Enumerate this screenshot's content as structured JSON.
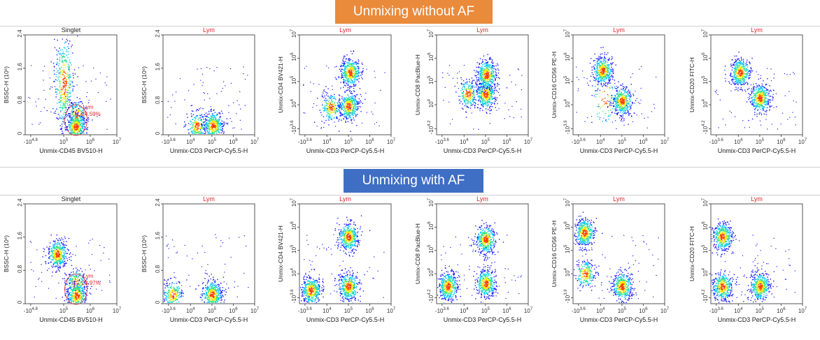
{
  "banners": {
    "top": "Unmixing without AF",
    "bottom": "Unmixing with AF"
  },
  "colors": {
    "banner_top": "#ea8a3b",
    "banner_bottom": "#3f6fc4",
    "title_red": "#e0262b",
    "gate_red": "#e0262b",
    "density_scale": [
      "#1a1aff",
      "#00c8ff",
      "#33e08a",
      "#ffe600",
      "#ff3b00"
    ]
  },
  "chart_data": [
    {
      "type": "scatter",
      "row": "without AF",
      "title": "Singlet",
      "title_color": "#222222",
      "xlabel": "Unmix-CD45 BV510-H",
      "ylabel": "BSSC-H (10⁶)",
      "xticks": [
        "-10^4.8",
        "10^5",
        "10^6",
        "10^7"
      ],
      "yticks": [
        "0",
        "0.8",
        "1.6",
        "2.4"
      ],
      "gate": {
        "name": "Lym",
        "percent": "24.59%"
      },
      "populations": [
        {
          "x": 100000,
          "y": 1.25,
          "density": "high"
        },
        {
          "x": 300000,
          "y": 0.5,
          "density": "medium"
        },
        {
          "x": 280000,
          "y": 0.2,
          "density": "high"
        }
      ]
    },
    {
      "type": "scatter",
      "row": "without AF",
      "title": "Lym",
      "title_color": "#e0262b",
      "xlabel": "Unmix-CD3 PerCP-Cy5.5-H",
      "ylabel": "BSSC-H (10⁶)",
      "xticks": [
        "-10^3.6",
        "10^4",
        "10^5",
        "10^6",
        "10^7"
      ],
      "yticks": [
        "0",
        "0.8",
        "1.6",
        "2.4"
      ],
      "populations": [
        {
          "x": 20000,
          "y": 0.22,
          "density": "medium"
        },
        {
          "x": 110000,
          "y": 0.22,
          "density": "high"
        }
      ]
    },
    {
      "type": "scatter",
      "row": "without AF",
      "title": "Lym",
      "title_color": "#e0262b",
      "xlabel": "Unmix-CD3 PerCP-Cy5.5-H",
      "ylabel": "Unmix-CD4 BV421-H",
      "xticks": [
        "-10^3.6",
        "10^4",
        "10^5",
        "10^6",
        "10^7"
      ],
      "yticks": [
        "-10^3.6",
        "10^4",
        "10^5",
        "10^6",
        "10^7"
      ],
      "populations": [
        {
          "x": 15000,
          "y": 8000,
          "density": "medium"
        },
        {
          "x": 100000,
          "y": 9000,
          "density": "high"
        },
        {
          "x": 120000,
          "y": 250000,
          "density": "high"
        }
      ]
    },
    {
      "type": "scatter",
      "row": "without AF",
      "title": "Lym",
      "title_color": "#e0262b",
      "xlabel": "Unmix-CD3 PerCP-Cy5.5-H",
      "ylabel": "Unmix-CD8 PacBlue-H",
      "xticks": [
        "-10^3.6",
        "10^4",
        "10^5",
        "10^6",
        "10^7"
      ],
      "yticks": [
        "-10^4.2",
        "10^4",
        "10^5",
        "10^6",
        "10^7"
      ],
      "populations": [
        {
          "x": 15000,
          "y": 30000,
          "density": "medium"
        },
        {
          "x": 100000,
          "y": 30000,
          "density": "high"
        },
        {
          "x": 110000,
          "y": 200000,
          "density": "high"
        }
      ]
    },
    {
      "type": "scatter",
      "row": "without AF",
      "title": "Lym",
      "title_color": "#e0262b",
      "xlabel": "Unmix-CD3 PerCP-Cy5.5-H",
      "ylabel": "Unmix-CD16 CD56 PE-H",
      "xticks": [
        "-10^3.6",
        "10^4",
        "10^5",
        "10^6",
        "10^7"
      ],
      "yticks": [
        "-10^3.9",
        "10^4",
        "10^5",
        "10^6",
        "10^7"
      ],
      "populations": [
        {
          "x": 15000,
          "y": 20000,
          "density": "low"
        },
        {
          "x": 12000,
          "y": 300000,
          "density": "high"
        },
        {
          "x": 100000,
          "y": 15000,
          "density": "high"
        }
      ]
    },
    {
      "type": "scatter",
      "row": "without AF",
      "title": "Lym",
      "title_color": "#e0262b",
      "xlabel": "Unmix-CD3 PerCP-Cy5.5-H",
      "ylabel": "Unmix-CD20 FITC-H",
      "xticks": [
        "-10^3.6",
        "10^4",
        "10^5",
        "10^6",
        "10^7"
      ],
      "yticks": [
        "-10^4.2",
        "10^4",
        "10^5",
        "10^6",
        "10^7"
      ],
      "populations": [
        {
          "x": 12000,
          "y": 250000,
          "density": "high"
        },
        {
          "x": 100000,
          "y": 20000,
          "density": "high"
        }
      ]
    },
    {
      "type": "scatter",
      "row": "with AF",
      "title": "Singlet",
      "title_color": "#222222",
      "xlabel": "Unmix-CD45 BV510-H",
      "ylabel": "BSSC-H (10⁶)",
      "xticks": [
        "-10^4.8",
        "10^5",
        "10^6",
        "10^7"
      ],
      "yticks": [
        "0",
        "0.8",
        "1.6",
        "2.4"
      ],
      "gate": {
        "name": "Lym",
        "percent": "23.97%"
      },
      "populations": [
        {
          "x": 40000,
          "y": 1.2,
          "density": "high"
        },
        {
          "x": 280000,
          "y": 0.5,
          "density": "medium"
        },
        {
          "x": 300000,
          "y": 0.2,
          "density": "high"
        }
      ]
    },
    {
      "type": "scatter",
      "row": "with AF",
      "title": "Lym",
      "title_color": "#e0262b",
      "xlabel": "Unmix-CD3 PerCP-Cy5.5-H",
      "ylabel": "BSSC-H (10⁶)",
      "xticks": [
        "-10^3.6",
        "10^4",
        "10^5",
        "10^6",
        "10^7"
      ],
      "yticks": [
        "0",
        "0.8",
        "1.6",
        "2.4"
      ],
      "populations": [
        {
          "x": -1000,
          "y": 0.22,
          "density": "medium"
        },
        {
          "x": 100000,
          "y": 0.22,
          "density": "high"
        }
      ]
    },
    {
      "type": "scatter",
      "row": "with AF",
      "title": "Lym",
      "title_color": "#e0262b",
      "xlabel": "Unmix-CD3 PerCP-Cy5.5-H",
      "ylabel": "Unmix-CD4 BV421-H",
      "xticks": [
        "-10^3.6",
        "10^4",
        "10^5",
        "10^6",
        "10^7"
      ],
      "yticks": [
        "-10^3.6",
        "10^4",
        "10^5",
        "10^6",
        "10^7"
      ],
      "populations": [
        {
          "x": -500,
          "y": 2000,
          "density": "high"
        },
        {
          "x": 100000,
          "y": 3000,
          "density": "high"
        },
        {
          "x": 100000,
          "y": 400000,
          "density": "high"
        }
      ]
    },
    {
      "type": "scatter",
      "row": "with AF",
      "title": "Lym",
      "title_color": "#e0262b",
      "xlabel": "Unmix-CD3 PerCP-Cy5.5-H",
      "ylabel": "Unmix-CD8 PacBlue-H",
      "xticks": [
        "-10^3.6",
        "10^4",
        "10^5",
        "10^6",
        "10^7"
      ],
      "yticks": [
        "-10^4.2",
        "10^4",
        "10^5",
        "10^6",
        "10^7"
      ],
      "populations": [
        {
          "x": -500,
          "y": 3000,
          "density": "high"
        },
        {
          "x": 100000,
          "y": 4000,
          "density": "high"
        },
        {
          "x": 100000,
          "y": 300000,
          "density": "high"
        }
      ]
    },
    {
      "type": "scatter",
      "row": "with AF",
      "title": "Lym",
      "title_color": "#e0262b",
      "xlabel": "Unmix-CD3 PerCP-Cy5.5-H",
      "ylabel": "Unmix-CD16 CD56 PE-H",
      "xticks": [
        "-10^3.6",
        "10^4",
        "10^5",
        "10^6",
        "10^7"
      ],
      "yticks": [
        "-10^3.9",
        "10^4",
        "10^5",
        "10^6",
        "10^7"
      ],
      "populations": [
        {
          "x": -500,
          "y": 600000,
          "density": "high"
        },
        {
          "x": -300,
          "y": 10000,
          "density": "medium"
        },
        {
          "x": 100000,
          "y": 3000,
          "density": "high"
        }
      ]
    },
    {
      "type": "scatter",
      "row": "with AF",
      "title": "Lym",
      "title_color": "#e0262b",
      "xlabel": "Unmix-CD3 PerCP-Cy5.5-H",
      "ylabel": "Unmix-CD20 FITC-H",
      "xticks": [
        "-10^3.6",
        "10^4",
        "10^5",
        "10^6",
        "10^7"
      ],
      "yticks": [
        "-10^4.2",
        "10^4",
        "10^5",
        "10^6",
        "10^7"
      ],
      "populations": [
        {
          "x": -500,
          "y": 400000,
          "density": "high"
        },
        {
          "x": -500,
          "y": 3000,
          "density": "high"
        },
        {
          "x": 100000,
          "y": 3000,
          "density": "high"
        }
      ]
    }
  ]
}
